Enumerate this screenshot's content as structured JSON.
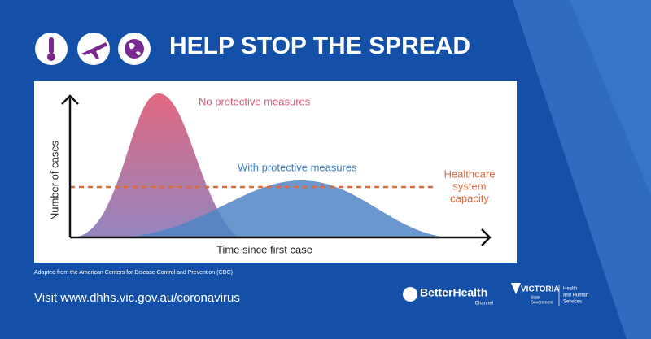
{
  "header": {
    "title": "HELP STOP THE SPREAD"
  },
  "chart": {
    "y_label": "Number of cases",
    "x_label": "Time since first case",
    "curve_no_measures": "No protective measures",
    "curve_with_measures": "With protective measures",
    "capacity_label": [
      "Healthcare",
      "system",
      "capacity"
    ]
  },
  "source": "Adapted from the American Centers for Disease Control and Prevention (CDC)",
  "footer": {
    "url": "Visit www.dhhs.vic.gov.au/coronavirus",
    "better_health": {
      "name": "BetterHealth",
      "sub": "Channel"
    },
    "victoria": {
      "name": "VICTORIA",
      "sub": [
        "State",
        "Government"
      ],
      "dept": [
        "Health",
        "and Human",
        "Services"
      ]
    }
  }
}
